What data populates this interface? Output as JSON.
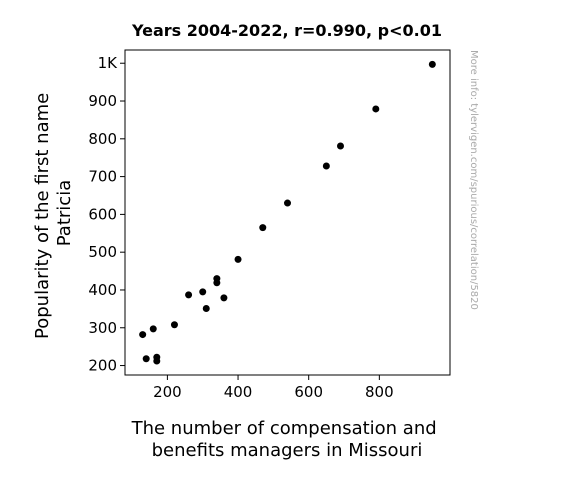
{
  "chart_data": {
    "type": "scatter",
    "title": "Years 2004-2022, r=0.990, p<0.01",
    "xlabel_lines": [
      "The number of compensation and",
      "benefits managers in Missouri"
    ],
    "ylabel_lines": [
      "Popularity of the first name",
      "Patricia"
    ],
    "watermark": "More info: tylervigen.com/spurious/correlation/5820",
    "xlim": [
      80,
      1000
    ],
    "ylim": [
      175,
      1035
    ],
    "x_ticks": [
      {
        "value": 200,
        "label": "200"
      },
      {
        "value": 400,
        "label": "400"
      },
      {
        "value": 600,
        "label": "600"
      },
      {
        "value": 800,
        "label": "800"
      }
    ],
    "y_ticks": [
      {
        "value": 200,
        "label": "200"
      },
      {
        "value": 300,
        "label": "300"
      },
      {
        "value": 400,
        "label": "400"
      },
      {
        "value": 500,
        "label": "500"
      },
      {
        "value": 600,
        "label": "600"
      },
      {
        "value": 700,
        "label": "700"
      },
      {
        "value": 800,
        "label": "800"
      },
      {
        "value": 900,
        "label": "900"
      },
      {
        "value": 1000,
        "label": "1K"
      }
    ],
    "grid": false,
    "point_color": "#000000",
    "points": [
      {
        "x": 950,
        "y": 997
      },
      {
        "x": 790,
        "y": 879
      },
      {
        "x": 690,
        "y": 781
      },
      {
        "x": 650,
        "y": 728
      },
      {
        "x": 540,
        "y": 630
      },
      {
        "x": 470,
        "y": 565
      },
      {
        "x": 400,
        "y": 481
      },
      {
        "x": 340,
        "y": 430
      },
      {
        "x": 340,
        "y": 419
      },
      {
        "x": 300,
        "y": 395
      },
      {
        "x": 260,
        "y": 387
      },
      {
        "x": 360,
        "y": 379
      },
      {
        "x": 310,
        "y": 351
      },
      {
        "x": 220,
        "y": 308
      },
      {
        "x": 160,
        "y": 297
      },
      {
        "x": 130,
        "y": 282
      },
      {
        "x": 170,
        "y": 222
      },
      {
        "x": 140,
        "y": 218
      },
      {
        "x": 170,
        "y": 212
      }
    ]
  }
}
